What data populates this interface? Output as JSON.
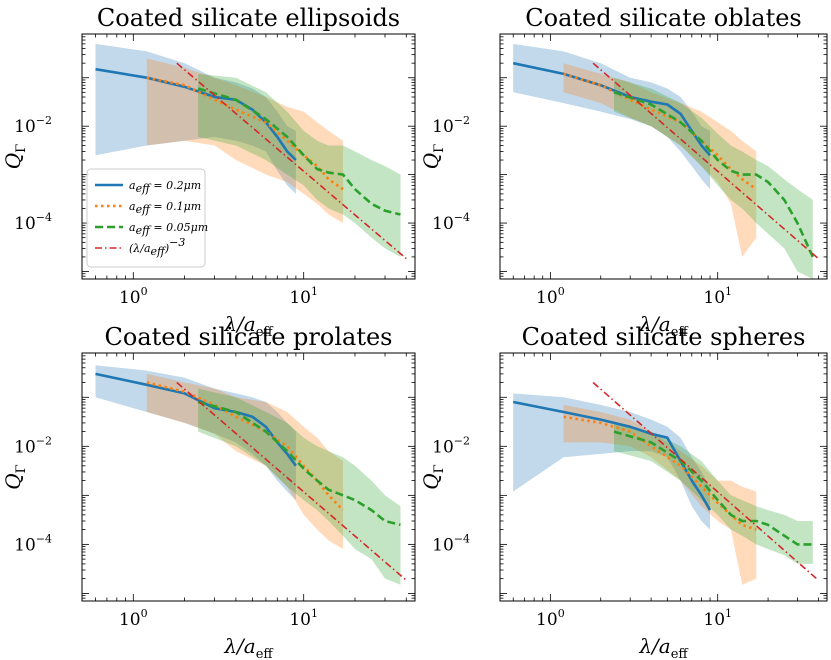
{
  "figure": {
    "xlabel": "λ/a",
    "xlabel_sub": "eff",
    "ylabel": "Q",
    "ylabel_sub": "Γ",
    "legend": [
      {
        "label": "a",
        "sub": "eff",
        "rest": " = 0.2μm",
        "color": "#1f77b4",
        "style": "solid"
      },
      {
        "label": "a",
        "sub": "eff",
        "rest": " = 0.1μm",
        "color": "#ff7f0e",
        "style": "dotted"
      },
      {
        "label": "a",
        "sub": "eff",
        "rest": " = 0.05μm",
        "color": "#2ca02c",
        "style": "dashed"
      },
      {
        "label": "(λ/a",
        "sub": "eff",
        "rest": ")",
        "sup": "−3",
        "color": "#d62728",
        "style": "dashdot"
      }
    ]
  },
  "chart_data": [
    {
      "type": "line",
      "title": "Coated silicate ellipsoids",
      "xscale": "log",
      "yscale": "log",
      "xlim": [
        0.5,
        45
      ],
      "ylim": [
        7e-06,
        0.8
      ],
      "xticks": [
        {
          "base": "10",
          "exp": "0"
        },
        {
          "base": "10",
          "exp": "1"
        }
      ],
      "yticks": [
        {
          "base": "10",
          "exp": "−2"
        },
        {
          "base": "10",
          "exp": "−4"
        }
      ],
      "series": [
        {
          "name": "a_eff = 0.2μm",
          "x": [
            0.6,
            1.2,
            2,
            3,
            4,
            5,
            6,
            7,
            8,
            9
          ],
          "y": [
            0.15,
            0.1,
            0.065,
            0.04,
            0.035,
            0.022,
            0.012,
            0.006,
            0.003,
            0.002
          ],
          "band_low": [
            0.0025,
            0.004,
            0.005,
            0.006,
            0.005,
            0.004,
            0.003,
            0.0012,
            0.0006,
            0.0004
          ],
          "band_high": [
            0.5,
            0.35,
            0.2,
            0.1,
            0.08,
            0.06,
            0.04,
            0.02,
            0.01,
            0.008
          ]
        },
        {
          "name": "a_eff = 0.1μm",
          "x": [
            1.2,
            2,
            3,
            4,
            6,
            8,
            10,
            12,
            14,
            17
          ],
          "y": [
            0.1,
            0.07,
            0.035,
            0.022,
            0.012,
            0.005,
            0.0025,
            0.0015,
            0.0008,
            0.0005
          ],
          "band_low": [
            0.004,
            0.005,
            0.004,
            0.002,
            0.001,
            0.0007,
            0.0004,
            0.00025,
            0.00015,
            0.0001
          ],
          "band_high": [
            0.25,
            0.16,
            0.1,
            0.07,
            0.04,
            0.025,
            0.02,
            0.012,
            0.008,
            0.005
          ]
        },
        {
          "name": "a_eff = 0.05μm",
          "x": [
            2.4,
            4,
            6,
            8,
            10,
            12,
            14,
            17,
            20,
            25,
            30,
            37
          ],
          "y": [
            0.06,
            0.035,
            0.014,
            0.006,
            0.0025,
            0.0013,
            0.0011,
            0.001,
            0.0005,
            0.00025,
            0.00018,
            0.00015
          ],
          "band_low": [
            0.006,
            0.004,
            0.002,
            0.001,
            0.0006,
            0.0003,
            0.0002,
            0.00015,
            0.0001,
            5e-05,
            3e-05,
            2e-05
          ],
          "band_high": [
            0.12,
            0.1,
            0.05,
            0.02,
            0.008,
            0.005,
            0.004,
            0.004,
            0.003,
            0.002,
            0.0015,
            0.001
          ]
        },
        {
          "name": "(λ/a_eff)^-3",
          "x": [
            1.8,
            40
          ],
          "y": [
            0.2,
            1.85e-05
          ],
          "band_low": null,
          "band_high": null
        }
      ],
      "legend_position": "lower-left"
    },
    {
      "type": "line",
      "title": "Coated silicate oblates",
      "xscale": "log",
      "yscale": "log",
      "xlim": [
        0.5,
        45
      ],
      "ylim": [
        7e-06,
        0.8
      ],
      "xticks": [
        {
          "base": "10",
          "exp": "0"
        },
        {
          "base": "10",
          "exp": "1"
        }
      ],
      "yticks": [
        {
          "base": "10",
          "exp": "−2"
        },
        {
          "base": "10",
          "exp": "−4"
        }
      ],
      "series": [
        {
          "name": "a_eff = 0.2μm",
          "x": [
            0.6,
            1.2,
            2,
            3,
            4,
            5,
            6,
            7,
            8,
            9
          ],
          "y": [
            0.2,
            0.12,
            0.07,
            0.04,
            0.032,
            0.028,
            0.018,
            0.008,
            0.004,
            0.0025
          ],
          "band_low": [
            0.05,
            0.03,
            0.02,
            0.014,
            0.01,
            0.006,
            0.003,
            0.0015,
            0.0008,
            0.0005
          ],
          "band_high": [
            0.5,
            0.35,
            0.2,
            0.1,
            0.08,
            0.06,
            0.04,
            0.02,
            0.01,
            0.008
          ]
        },
        {
          "name": "a_eff = 0.1μm",
          "x": [
            1.2,
            2,
            3,
            4,
            6,
            8,
            10,
            12,
            14,
            17
          ],
          "y": [
            0.12,
            0.07,
            0.035,
            0.022,
            0.012,
            0.005,
            0.0025,
            0.0013,
            0.0008,
            0.0005
          ],
          "band_low": [
            0.05,
            0.03,
            0.015,
            0.01,
            0.004,
            0.0015,
            0.0007,
            0.00025,
            2e-05,
            5e-05
          ],
          "band_high": [
            0.2,
            0.12,
            0.08,
            0.05,
            0.03,
            0.02,
            0.012,
            0.008,
            0.005,
            0.003
          ]
        },
        {
          "name": "a_eff = 0.05μm",
          "x": [
            2.4,
            4,
            6,
            8,
            10,
            12,
            14,
            17,
            20,
            25,
            30,
            37
          ],
          "y": [
            0.05,
            0.028,
            0.012,
            0.005,
            0.002,
            0.0012,
            0.001,
            0.001,
            0.0007,
            0.0003,
            0.0001,
            2e-05
          ],
          "band_low": [
            0.02,
            0.01,
            0.004,
            0.0015,
            0.0006,
            0.0003,
            0.0002,
            0.0001,
            6e-05,
            3e-05,
            1e-05,
            7e-06
          ],
          "band_high": [
            0.1,
            0.06,
            0.03,
            0.015,
            0.007,
            0.004,
            0.003,
            0.002,
            0.0015,
            0.0008,
            0.0005,
            0.0003
          ]
        },
        {
          "name": "(λ/a_eff)^-3",
          "x": [
            1.8,
            40
          ],
          "y": [
            0.2,
            1.85e-05
          ],
          "band_low": null,
          "band_high": null
        }
      ]
    },
    {
      "type": "line",
      "title": "Coated silicate prolates",
      "xscale": "log",
      "yscale": "log",
      "xlim": [
        0.5,
        45
      ],
      "ylim": [
        7e-06,
        0.8
      ],
      "xticks": [
        {
          "base": "10",
          "exp": "0"
        },
        {
          "base": "10",
          "exp": "1"
        }
      ],
      "yticks": [
        {
          "base": "10",
          "exp": "−2"
        },
        {
          "base": "10",
          "exp": "−4"
        }
      ],
      "series": [
        {
          "name": "a_eff = 0.2μm",
          "x": [
            0.6,
            1.2,
            2,
            3,
            4,
            5,
            6,
            7,
            8,
            9
          ],
          "y": [
            0.3,
            0.18,
            0.12,
            0.06,
            0.05,
            0.04,
            0.025,
            0.012,
            0.007,
            0.004
          ],
          "band_low": [
            0.1,
            0.05,
            0.03,
            0.018,
            0.012,
            0.007,
            0.004,
            0.002,
            0.0012,
            0.0008
          ],
          "band_high": [
            0.45,
            0.35,
            0.25,
            0.15,
            0.12,
            0.1,
            0.08,
            0.05,
            0.03,
            0.02
          ]
        },
        {
          "name": "a_eff = 0.1μm",
          "x": [
            1.2,
            2,
            3,
            4,
            6,
            8,
            10,
            12,
            14,
            17
          ],
          "y": [
            0.2,
            0.13,
            0.07,
            0.04,
            0.02,
            0.01,
            0.004,
            0.002,
            0.001,
            0.0005
          ],
          "band_low": [
            0.05,
            0.03,
            0.018,
            0.008,
            0.004,
            0.0015,
            0.0004,
            0.0002,
            0.00012,
            8e-05
          ],
          "band_high": [
            0.3,
            0.2,
            0.15,
            0.1,
            0.08,
            0.05,
            0.025,
            0.015,
            0.008,
            0.005
          ]
        },
        {
          "name": "a_eff = 0.05μm",
          "x": [
            2.4,
            4,
            6,
            8,
            10,
            12,
            14,
            17,
            20,
            25,
            30,
            37
          ],
          "y": [
            0.08,
            0.05,
            0.02,
            0.008,
            0.0035,
            0.002,
            0.0013,
            0.001,
            0.0008,
            0.0005,
            0.0003,
            0.00025
          ],
          "band_low": [
            0.02,
            0.01,
            0.004,
            0.0015,
            0.0008,
            0.0005,
            0.0003,
            0.00015,
            8e-05,
            5e-05,
            2e-05,
            1.5e-05
          ],
          "band_high": [
            0.15,
            0.1,
            0.05,
            0.03,
            0.015,
            0.01,
            0.008,
            0.006,
            0.004,
            0.002,
            0.001,
            0.0006
          ]
        },
        {
          "name": "(λ/a_eff)^-3",
          "x": [
            1.8,
            40
          ],
          "y": [
            0.2,
            1.85e-05
          ],
          "band_low": null,
          "band_high": null
        }
      ]
    },
    {
      "type": "line",
      "title": "Coated silicate spheres",
      "xscale": "log",
      "yscale": "log",
      "xlim": [
        0.5,
        45
      ],
      "ylim": [
        7e-06,
        0.8
      ],
      "xticks": [
        {
          "base": "10",
          "exp": "0"
        },
        {
          "base": "10",
          "exp": "1"
        }
      ],
      "yticks": [
        {
          "base": "10",
          "exp": "−2"
        },
        {
          "base": "10",
          "exp": "−4"
        }
      ],
      "series": [
        {
          "name": "a_eff = 0.2μm",
          "x": [
            0.6,
            1.2,
            2,
            3,
            4,
            5,
            6,
            7,
            8,
            9
          ],
          "y": [
            0.08,
            0.05,
            0.035,
            0.025,
            0.018,
            0.015,
            0.005,
            0.002,
            0.001,
            0.0005
          ],
          "band_low": [
            0.0012,
            0.006,
            0.007,
            0.008,
            0.008,
            0.006,
            0.002,
            0.0006,
            0.0003,
            0.0002
          ],
          "band_high": [
            0.12,
            0.1,
            0.07,
            0.05,
            0.035,
            0.025,
            0.015,
            0.006,
            0.003,
            0.0015
          ]
        },
        {
          "name": "a_eff = 0.1μm",
          "x": [
            1.2,
            2,
            3,
            4,
            6,
            8,
            10,
            12,
            14,
            17
          ],
          "y": [
            0.04,
            0.03,
            0.02,
            0.01,
            0.004,
            0.0015,
            0.0007,
            0.0004,
            0.00025,
            0.0002
          ],
          "band_low": [
            0.012,
            0.012,
            0.01,
            0.006,
            0.002,
            0.0006,
            0.0003,
            0.0002,
            1.5e-05,
            2e-05
          ],
          "band_high": [
            0.07,
            0.05,
            0.035,
            0.02,
            0.008,
            0.004,
            0.002,
            0.002,
            0.0015,
            0.0012
          ]
        },
        {
          "name": "a_eff = 0.05μm",
          "x": [
            2.4,
            4,
            6,
            8,
            10,
            12,
            14,
            17,
            20,
            25,
            30,
            37
          ],
          "y": [
            0.02,
            0.012,
            0.005,
            0.002,
            0.0008,
            0.0004,
            0.0003,
            0.0003,
            0.00025,
            0.00015,
            0.0001,
            0.0001
          ],
          "band_low": [
            0.008,
            0.005,
            0.002,
            0.0008,
            0.0004,
            0.0002,
            0.00015,
            0.0001,
            8e-05,
            6e-05,
            4e-05,
            4e-05
          ],
          "band_high": [
            0.03,
            0.02,
            0.01,
            0.005,
            0.002,
            0.001,
            0.0008,
            0.0006,
            0.0005,
            0.0004,
            0.0003,
            0.0003
          ]
        },
        {
          "name": "(λ/a_eff)^-3",
          "x": [
            1.8,
            40
          ],
          "y": [
            0.2,
            1.85e-05
          ],
          "band_low": null,
          "band_high": null
        }
      ]
    }
  ]
}
